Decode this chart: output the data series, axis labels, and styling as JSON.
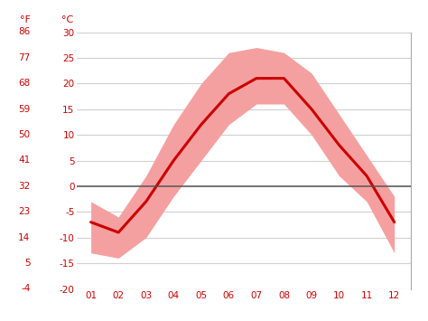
{
  "months": [
    1,
    2,
    3,
    4,
    5,
    6,
    7,
    8,
    9,
    10,
    11,
    12
  ],
  "month_labels": [
    "01",
    "02",
    "03",
    "04",
    "05",
    "06",
    "07",
    "08",
    "09",
    "10",
    "11",
    "12"
  ],
  "avg_temp": [
    -7,
    -9,
    -3,
    5,
    12,
    18,
    21,
    21,
    15,
    8,
    2,
    -7
  ],
  "temp_max": [
    -3,
    -6,
    2,
    12,
    20,
    26,
    27,
    26,
    22,
    14,
    6,
    -2
  ],
  "temp_min": [
    -13,
    -14,
    -10,
    -2,
    5,
    12,
    16,
    16,
    10,
    2,
    -3,
    -13
  ],
  "ylim": [
    -20,
    30
  ],
  "yticks_c": [
    -20,
    -15,
    -10,
    -5,
    0,
    5,
    10,
    15,
    20,
    25,
    30
  ],
  "yticks_f": [
    -4,
    5,
    14,
    23,
    32,
    41,
    50,
    59,
    68,
    77,
    86
  ],
  "line_color": "#cc0000",
  "band_color": "#f5a0a0",
  "zero_line_color": "#555555",
  "tick_color": "#cc0000",
  "grid_color": "#d0d0d0",
  "bg_color": "#ffffff",
  "label_f": "°F",
  "label_c": "°C"
}
